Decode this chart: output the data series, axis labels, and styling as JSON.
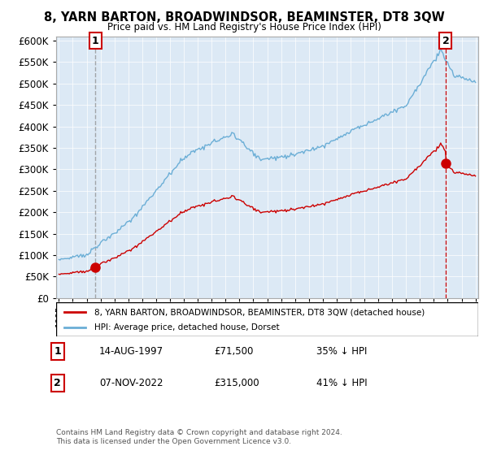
{
  "title": "8, YARN BARTON, BROADWINDSOR, BEAMINSTER, DT8 3QW",
  "subtitle": "Price paid vs. HM Land Registry's House Price Index (HPI)",
  "legend_line1": "8, YARN BARTON, BROADWINDSOR, BEAMINSTER, DT8 3QW (detached house)",
  "legend_line2": "HPI: Average price, detached house, Dorset",
  "annotation1_num": "1",
  "annotation1_date": "14-AUG-1997",
  "annotation1_price": "£71,500",
  "annotation1_hpi": "35% ↓ HPI",
  "annotation2_num": "2",
  "annotation2_date": "07-NOV-2022",
  "annotation2_price": "£315,000",
  "annotation2_hpi": "41% ↓ HPI",
  "footnote": "Contains HM Land Registry data © Crown copyright and database right 2024.\nThis data is licensed under the Open Government Licence v3.0.",
  "hpi_color": "#6baed6",
  "price_color": "#cc0000",
  "marker_color": "#cc0000",
  "dashed1_color": "#888888",
  "dashed2_color": "#cc0000",
  "plot_bg_color": "#dce9f5",
  "ylim_min": 0,
  "ylim_max": 600000,
  "yticks": [
    0,
    50000,
    100000,
    150000,
    200000,
    250000,
    300000,
    350000,
    400000,
    450000,
    500000,
    550000,
    600000
  ],
  "sale1_x": 1997.62,
  "sale1_y": 71500,
  "sale2_x": 2022.85,
  "sale2_y": 315000,
  "xmin": 1995,
  "xmax": 2025
}
